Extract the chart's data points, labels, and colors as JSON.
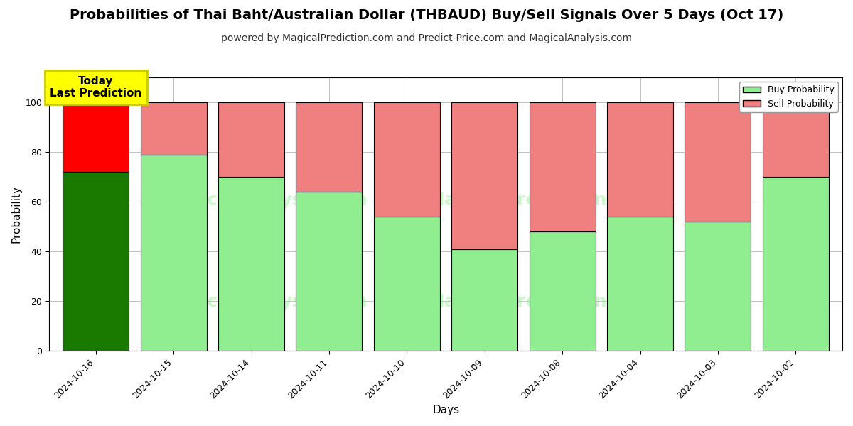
{
  "title": "Probabilities of Thai Baht/Australian Dollar (THBAUD) Buy/Sell Signals Over 5 Days (Oct 17)",
  "subtitle": "powered by MagicalPrediction.com and Predict-Price.com and MagicalAnalysis.com",
  "xlabel": "Days",
  "ylabel": "Probability",
  "dates": [
    "2024-10-16",
    "2024-10-15",
    "2024-10-14",
    "2024-10-11",
    "2024-10-10",
    "2024-10-09",
    "2024-10-08",
    "2024-10-04",
    "2024-10-03",
    "2024-10-02"
  ],
  "buy_values": [
    72,
    79,
    70,
    64,
    54,
    41,
    48,
    54,
    52,
    70
  ],
  "sell_values": [
    28,
    21,
    30,
    36,
    46,
    59,
    52,
    46,
    48,
    30
  ],
  "buy_color_today": "#1a7a00",
  "sell_color_today": "#ff0000",
  "buy_color_normal": "#90ee90",
  "sell_color_normal": "#f08080",
  "bar_edgecolor": "#000000",
  "bar_linewidth": 0.8,
  "ylim": [
    0,
    110
  ],
  "yticks": [
    0,
    20,
    40,
    60,
    80,
    100
  ],
  "grid_color": "#aaaaaa",
  "grid_linestyle": "-",
  "grid_linewidth": 0.5,
  "dashed_line_y": 110,
  "dashed_line_color": "#888888",
  "dashed_line_style": "--",
  "annotation_text": "Today\nLast Prediction",
  "annotation_bg": "#ffff00",
  "annotation_fontsize": 11,
  "legend_buy_label": "Buy Probability",
  "legend_sell_label": "Sell Probability",
  "watermark_color": "#90ee90",
  "watermark_alpha": 0.45,
  "title_fontsize": 14,
  "subtitle_fontsize": 10,
  "axis_label_fontsize": 11,
  "tick_fontsize": 9,
  "fig_width": 12,
  "fig_height": 6,
  "fig_dpi": 100,
  "bg_color": "#ffffff"
}
